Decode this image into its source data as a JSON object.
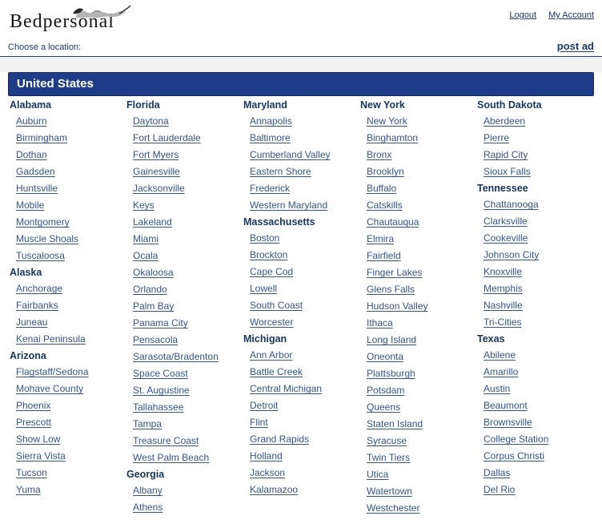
{
  "header": {
    "logo_text": "Bedpersonal",
    "logout": "Logout",
    "my_account": "My Account"
  },
  "toolbar": {
    "choose_label": "Choose a location:",
    "post_ad": "post ad"
  },
  "region": {
    "title": "United States"
  },
  "colors": {
    "region_bar_bg": "#1e3c87",
    "state_heading": "#17365f",
    "link": "#34548c",
    "rule": "#2a4070"
  },
  "columns": [
    [
      {
        "state": "Alabama",
        "cities": [
          "Auburn",
          "Birmingham",
          "Dothan",
          "Gadsden",
          "Huntsville",
          "Mobile",
          "Montgomery",
          "Muscle Shoals",
          "Tuscaloosa"
        ]
      },
      {
        "state": "Alaska",
        "cities": [
          "Anchorage",
          "Fairbanks",
          "Juneau",
          "Kenai Peninsula"
        ]
      },
      {
        "state": "Arizona",
        "cities": [
          "Flagstaff/Sedona",
          "Mohave County",
          "Phoenix",
          "Prescott",
          "Show Low",
          "Sierra Vista",
          "Tucson",
          "Yuma"
        ]
      }
    ],
    [
      {
        "state": "Florida",
        "cities": [
          "Daytona",
          "Fort Lauderdale",
          "Fort Myers",
          "Gainesville",
          "Jacksonville",
          "Keys",
          "Lakeland",
          "Miami",
          "Ocala",
          "Okaloosa",
          "Orlando",
          "Palm Bay",
          "Panama City",
          "Pensacola",
          "Sarasota/Bradenton",
          "Space Coast",
          "St. Augustine",
          "Tallahassee",
          "Tampa",
          "Treasure Coast",
          "West Palm Beach"
        ]
      },
      {
        "state": "Georgia",
        "cities": [
          "Albany",
          "Athens"
        ]
      }
    ],
    [
      {
        "state": "Maryland",
        "cities": [
          "Annapolis",
          "Baltimore",
          "Cumberland Valley",
          "Eastern Shore",
          "Frederick",
          "Western Maryland"
        ]
      },
      {
        "state": "Massachusetts",
        "cities": [
          "Boston",
          "Brockton",
          "Cape Cod",
          "Lowell",
          "South Coast",
          "Worcester"
        ]
      },
      {
        "state": "Michigan",
        "cities": [
          "Ann Arbor",
          "Battle Creek",
          "Central Michigan",
          "Detroit",
          "Flint",
          "Grand Rapids",
          "Holland",
          "Jackson",
          "Kalamazoo"
        ]
      }
    ],
    [
      {
        "state": "New York",
        "cities": [
          "New York",
          "Binghamton",
          "Bronx",
          "Brooklyn",
          "Buffalo",
          "Catskills",
          "Chautauqua",
          "Elmira",
          "Fairfield",
          "Finger Lakes",
          "Glens Falls",
          "Hudson Valley",
          "Ithaca",
          "Long Island",
          "Oneonta",
          "Plattsburgh",
          "Potsdam",
          "Queens",
          "Staten Island",
          "Syracuse",
          "Twin Tiers",
          "Utica",
          "Watertown",
          "Westchester"
        ]
      }
    ],
    [
      {
        "state": "South Dakota",
        "cities": [
          "Aberdeen",
          "Pierre",
          "Rapid City",
          "Sioux Falls"
        ]
      },
      {
        "state": "Tennessee",
        "cities": [
          "Chattanooga",
          "Clarksville",
          "Cookeville",
          "Johnson City",
          "Knoxville",
          "Memphis",
          "Nashville",
          "Tri-Cities"
        ]
      },
      {
        "state": "Texas",
        "cities": [
          "Abilene",
          "Amarillo",
          "Austin",
          "Beaumont",
          "Brownsville",
          "College Station",
          "Corpus Christi",
          "Dallas",
          "Del Rio"
        ]
      }
    ]
  ]
}
